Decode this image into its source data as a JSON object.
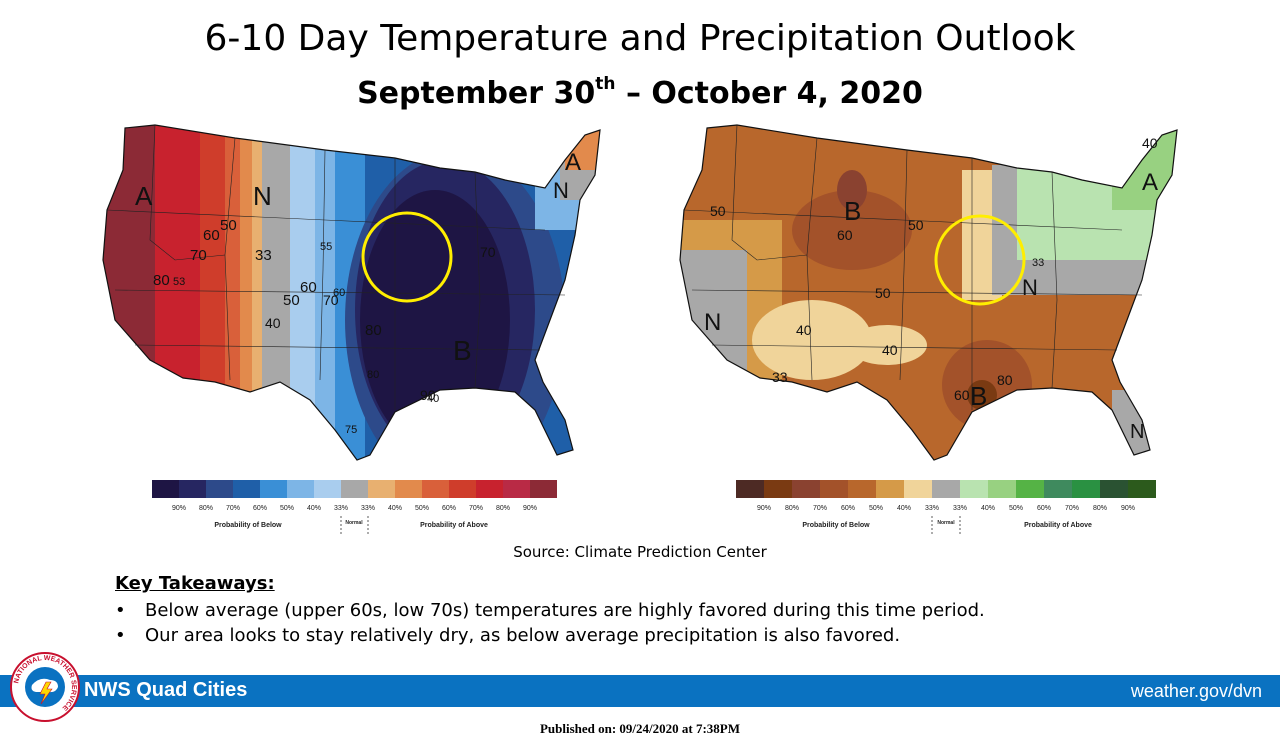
{
  "header": {
    "title": "6-10 Day Temperature and Precipitation Outlook",
    "subtitle_pre": "September 30",
    "subtitle_sup": "th",
    "subtitle_post": " – October 4, 2020"
  },
  "temperature_map": {
    "category_labels": [
      "A",
      "N",
      "A",
      "N",
      "B"
    ],
    "contour_labels": [
      "50",
      "60",
      "70",
      "80",
      "53",
      "33",
      "50",
      "60",
      "70",
      "40",
      "55",
      "60",
      "80",
      "70",
      "80",
      "90",
      "75",
      "40"
    ],
    "colors": {
      "below_90": "#1e1544",
      "below_80": "#262661",
      "below_70": "#2d4a8a",
      "below_60": "#1f5fa8",
      "below_50": "#3a8fd6",
      "below_40": "#7db5e6",
      "below_33": "#a9cdee",
      "normal": "#a8a8a8",
      "above_33": "#e8b070",
      "above_40": "#e28a4c",
      "above_50": "#d9603a",
      "above_60": "#cf3d2b",
      "above_70": "#c8222e",
      "above_80": "#b92a45",
      "above_90": "#8c2a36"
    }
  },
  "precipitation_map": {
    "category_labels": [
      "B",
      "B",
      "N",
      "N",
      "A",
      "N"
    ],
    "contour_labels": [
      "50",
      "60",
      "50",
      "50",
      "40",
      "40",
      "33",
      "60",
      "80",
      "33",
      "40"
    ],
    "colors": {
      "below_90": "#4d2a24",
      "below_80": "#7a3a12",
      "below_70": "#8a4230",
      "below_60": "#a3522a",
      "below_50": "#b8672c",
      "below_40": "#d59a48",
      "below_33": "#f0d49a",
      "normal": "#a8a8a8",
      "above_33": "#b9e3b0",
      "above_40": "#98d181",
      "above_50": "#55b345",
      "above_60": "#3f8a5e",
      "above_70": "#2a9142",
      "above_80": "#2a5232",
      "above_90": "#2c5a1c"
    }
  },
  "legend": {
    "ticks": [
      "90%",
      "80%",
      "70%",
      "60%",
      "50%",
      "40%",
      "33%",
      "33%",
      "40%",
      "50%",
      "60%",
      "70%",
      "80%",
      "90%"
    ],
    "below_label": "Probability of Below",
    "normal_label": "Normal",
    "above_label": "Probability of Above"
  },
  "source": "Source: Climate Prediction Center",
  "takeaways": {
    "title": "Key Takeaways:",
    "bullet": "•",
    "items": [
      "Below average (upper 60s, low 70s) temperatures are highly favored during this time period.",
      "Our area looks to stay relatively dry, as below average precipitation is also favored."
    ]
  },
  "footer": {
    "office": "NWS Quad Cities",
    "url": "weather.gov/dvn",
    "published": "Published on: 09/24/2020 at 7:38PM",
    "logo_ring_text": "NATIONAL WEATHER SERVICE"
  }
}
